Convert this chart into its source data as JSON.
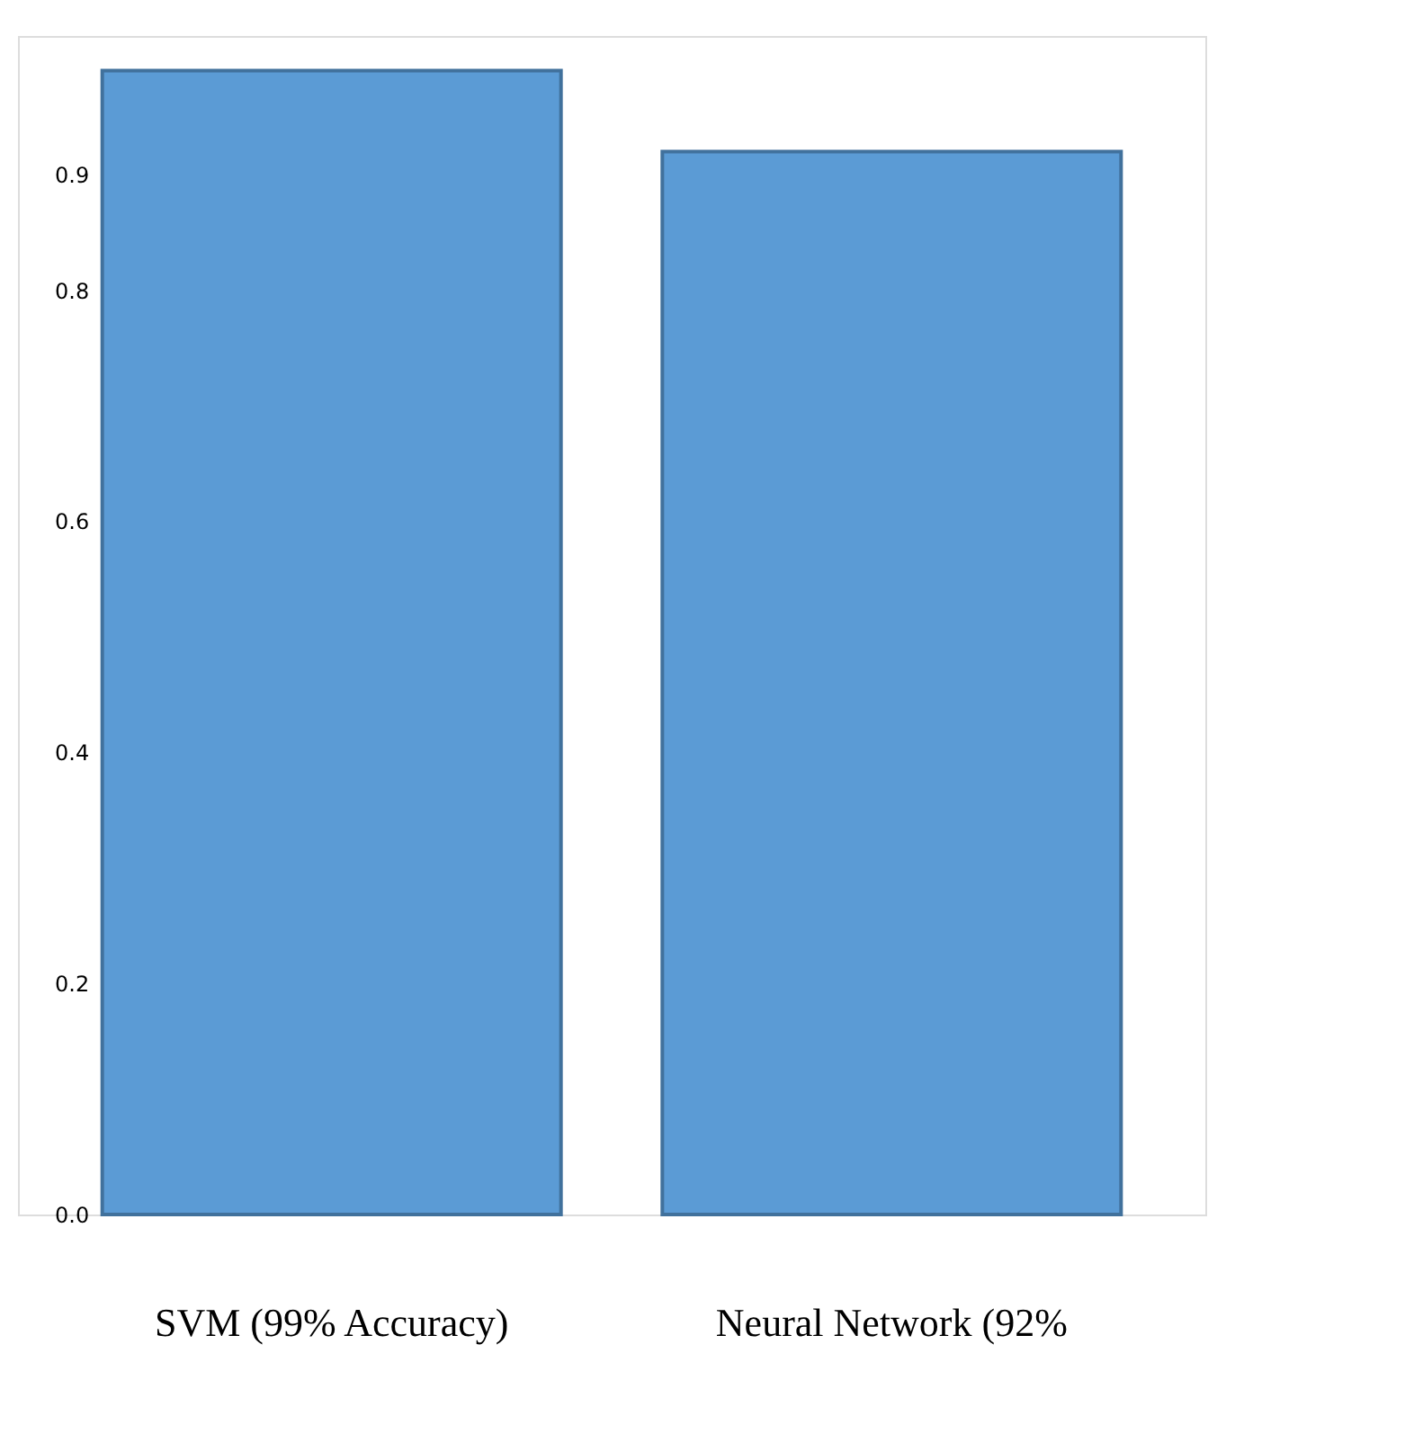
{
  "chart_data": {
    "type": "bar",
    "categories": [
      "SVM (99% Accuracy)",
      "Neural Network (92%"
    ],
    "values": [
      0.99,
      0.92
    ],
    "color": "#5b9bd5",
    "ylim": [
      0,
      1.02
    ],
    "yticks": [
      {
        "value": 0,
        "label": "0.0"
      },
      0.2,
      0.4,
      0.6,
      0.8,
      0.9
    ],
    "grid": false
  }
}
